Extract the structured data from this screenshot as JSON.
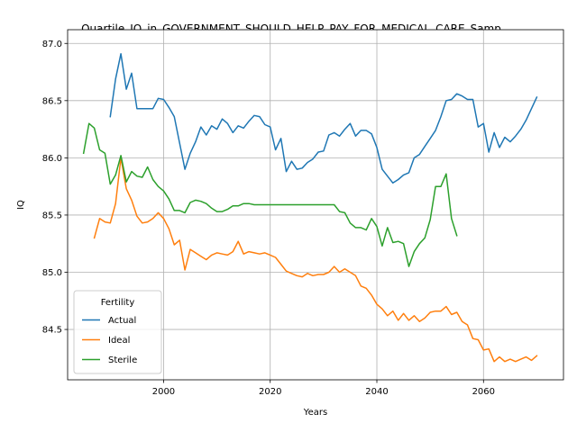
{
  "chart_data": {
    "type": "line",
    "title": "_Quartile_IQ_in_GOVERNMENT_SHOULD_HELP_PAY_FOR_MEDICAL_CARE_Samp",
    "xlabel": "Years",
    "ylabel": "IQ",
    "xlim": [
      1982,
      2075
    ],
    "ylim": [
      84.06,
      87.12
    ],
    "x_ticks": [
      2000,
      2020,
      2040,
      2060
    ],
    "x_tick_labels": [
      "2000",
      "2020",
      "2040",
      "2060"
    ],
    "y_ticks": [
      84.5,
      85.0,
      85.5,
      86.0,
      86.5,
      87.0
    ],
    "y_tick_labels": [
      "84.5",
      "85.0",
      "85.5",
      "86.0",
      "86.5",
      "87.0"
    ],
    "grid": true,
    "legend": {
      "title": "Fertility",
      "position": "lower-left"
    },
    "series": [
      {
        "name": "Actual",
        "color": "#1f77b4",
        "x": [
          1990,
          1991,
          1992,
          1993,
          1994,
          1995,
          1996,
          1997,
          1998,
          1999,
          2000,
          2001,
          2002,
          2003,
          2004,
          2005,
          2006,
          2007,
          2008,
          2009,
          2010,
          2011,
          2012,
          2013,
          2014,
          2015,
          2016,
          2017,
          2018,
          2019,
          2020,
          2021,
          2022,
          2023,
          2024,
          2025,
          2026,
          2027,
          2028,
          2029,
          2030,
          2031,
          2032,
          2033,
          2034,
          2035,
          2036,
          2037,
          2038,
          2039,
          2040,
          2041,
          2042,
          2043,
          2044,
          2045,
          2046,
          2047,
          2048,
          2049,
          2050,
          2051,
          2052,
          2053,
          2054,
          2055,
          2056,
          2057,
          2058,
          2059,
          2060,
          2061,
          2062,
          2063,
          2064,
          2065,
          2066,
          2067,
          2068,
          2069,
          2070
        ],
        "values": [
          86.36,
          86.69,
          86.91,
          86.6,
          86.74,
          86.43,
          86.43,
          86.43,
          86.43,
          86.52,
          86.51,
          86.44,
          86.36,
          86.13,
          85.9,
          86.04,
          86.14,
          86.27,
          86.2,
          86.28,
          86.25,
          86.34,
          86.3,
          86.22,
          86.28,
          86.26,
          86.32,
          86.37,
          86.36,
          86.29,
          86.27,
          86.07,
          86.17,
          85.88,
          85.97,
          85.9,
          85.91,
          85.96,
          85.99,
          86.05,
          86.06,
          86.2,
          86.22,
          86.19,
          86.25,
          86.3,
          86.19,
          86.24,
          86.24,
          86.21,
          86.09,
          85.9,
          85.84,
          85.78,
          85.81,
          85.85,
          85.87,
          86.0,
          86.03,
          86.1,
          86.17,
          86.24,
          86.36,
          86.5,
          86.51,
          86.56,
          86.54,
          86.51,
          86.51,
          86.27,
          86.3,
          86.05,
          86.22,
          86.09,
          86.18,
          86.14,
          86.19,
          86.25,
          86.33,
          86.43,
          86.53
        ]
      },
      {
        "name": "Ideal",
        "color": "#ff7f0e",
        "x": [
          1987,
          1988,
          1989,
          1990,
          1991,
          1992,
          1993,
          1994,
          1995,
          1996,
          1997,
          1998,
          1999,
          2000,
          2001,
          2002,
          2003,
          2004,
          2005,
          2006,
          2007,
          2008,
          2009,
          2010,
          2011,
          2012,
          2013,
          2014,
          2015,
          2016,
          2017,
          2018,
          2019,
          2020,
          2021,
          2022,
          2023,
          2024,
          2025,
          2026,
          2027,
          2028,
          2029,
          2030,
          2031,
          2032,
          2033,
          2034,
          2035,
          2036,
          2037,
          2038,
          2039,
          2040,
          2041,
          2042,
          2043,
          2044,
          2045,
          2046,
          2047,
          2048,
          2049,
          2050,
          2051,
          2052,
          2053,
          2054,
          2055,
          2056,
          2057,
          2058,
          2059,
          2060,
          2061,
          2062,
          2063,
          2064,
          2065,
          2066,
          2067,
          2068,
          2069,
          2070
        ],
        "values": [
          85.3,
          85.47,
          85.44,
          85.43,
          85.6,
          86.0,
          85.73,
          85.63,
          85.49,
          85.43,
          85.44,
          85.47,
          85.52,
          85.47,
          85.38,
          85.24,
          85.28,
          85.02,
          85.2,
          85.17,
          85.14,
          85.11,
          85.15,
          85.17,
          85.16,
          85.15,
          85.18,
          85.27,
          85.16,
          85.18,
          85.17,
          85.16,
          85.17,
          85.15,
          85.13,
          85.07,
          85.01,
          84.99,
          84.97,
          84.96,
          84.99,
          84.97,
          84.98,
          84.98,
          85.0,
          85.05,
          85.0,
          85.03,
          85.0,
          84.97,
          84.88,
          84.86,
          84.8,
          84.72,
          84.68,
          84.62,
          84.66,
          84.58,
          84.64,
          84.58,
          84.62,
          84.57,
          84.6,
          84.65,
          84.66,
          84.66,
          84.7,
          84.63,
          84.65,
          84.57,
          84.54,
          84.42,
          84.41,
          84.32,
          84.33,
          84.22,
          84.26,
          84.22,
          84.24,
          84.22,
          84.24,
          84.26,
          84.23,
          84.27
        ]
      },
      {
        "name": "Sterile",
        "color": "#2ca02c",
        "x": [
          1985,
          1986,
          1987,
          1988,
          1989,
          1990,
          1991,
          1992,
          1993,
          1994,
          1995,
          1996,
          1997,
          1998,
          1999,
          2000,
          2001,
          2002,
          2003,
          2004,
          2005,
          2006,
          2007,
          2008,
          2009,
          2010,
          2011,
          2012,
          2013,
          2014,
          2015,
          2016,
          2017,
          2018,
          2019,
          2020,
          2021,
          2022,
          2023,
          2024,
          2025,
          2026,
          2027,
          2028,
          2029,
          2030,
          2031,
          2032,
          2033,
          2034,
          2035,
          2036,
          2037,
          2038,
          2039,
          2040,
          2041,
          2042,
          2043,
          2044,
          2045,
          2046,
          2047,
          2048,
          2049,
          2050,
          2051,
          2052,
          2053,
          2054,
          2055
        ],
        "values": [
          86.04,
          86.3,
          86.26,
          86.07,
          86.04,
          85.77,
          85.85,
          86.02,
          85.79,
          85.88,
          85.84,
          85.83,
          85.92,
          85.81,
          85.75,
          85.71,
          85.64,
          85.54,
          85.54,
          85.52,
          85.61,
          85.63,
          85.62,
          85.6,
          85.56,
          85.53,
          85.53,
          85.55,
          85.58,
          85.58,
          85.6,
          85.6,
          85.59,
          85.59,
          85.59,
          85.59,
          85.59,
          85.59,
          85.59,
          85.59,
          85.59,
          85.59,
          85.59,
          85.59,
          85.59,
          85.59,
          85.59,
          85.59,
          85.53,
          85.52,
          85.43,
          85.39,
          85.39,
          85.37,
          85.47,
          85.4,
          85.23,
          85.39,
          85.26,
          85.27,
          85.25,
          85.05,
          85.18,
          85.25,
          85.3,
          85.46,
          85.75,
          85.75,
          85.86,
          85.47,
          85.32
        ]
      }
    ]
  }
}
